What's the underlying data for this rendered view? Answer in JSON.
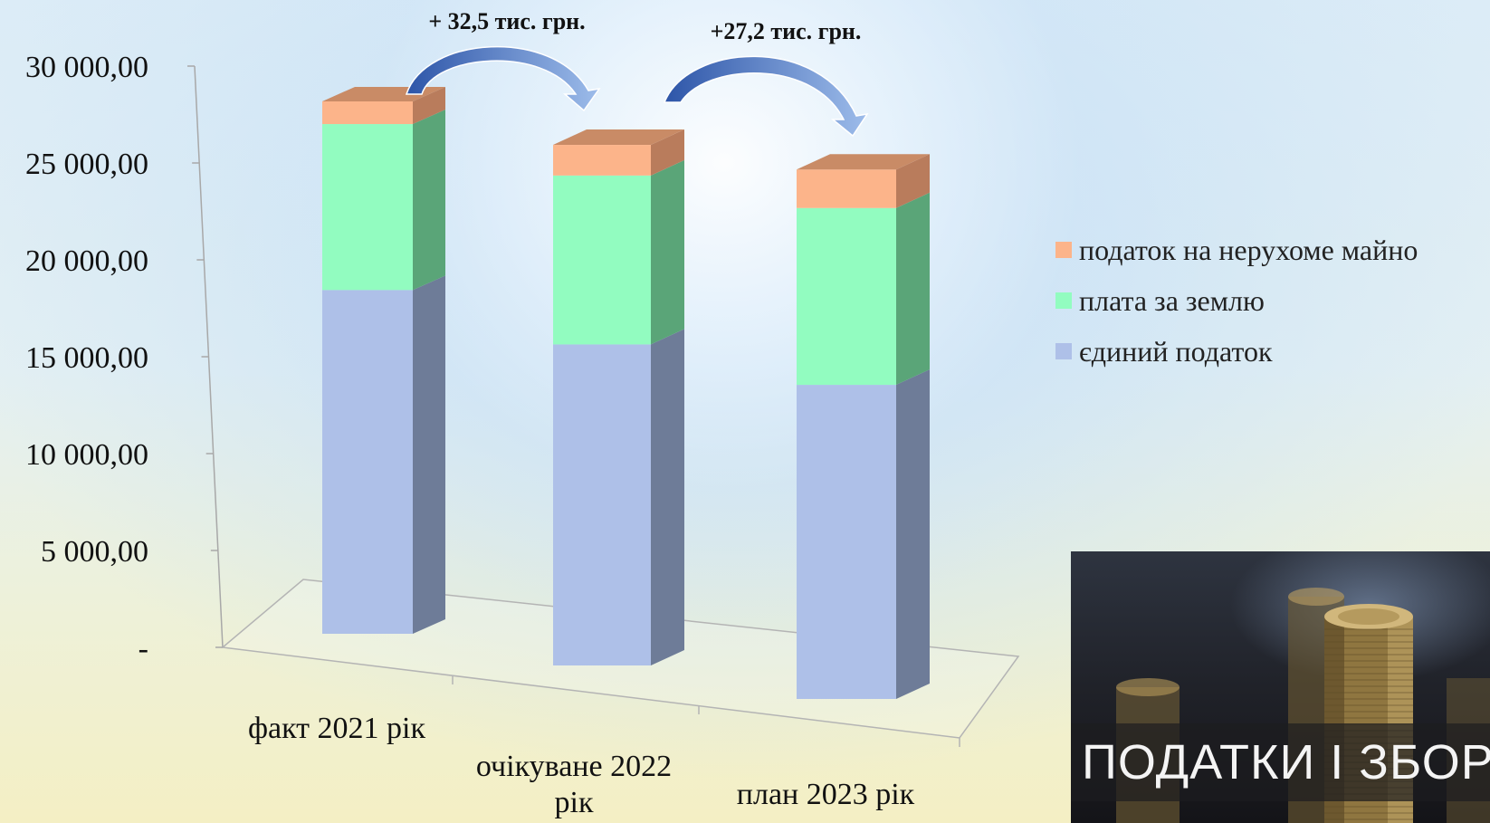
{
  "chart_data": {
    "type": "bar",
    "stacked": true,
    "three_d": true,
    "categories": [
      "факт 2021 рік",
      "очікуване 2022 рік",
      "план 2023 рік"
    ],
    "category_lines": [
      [
        "факт 2021 рік"
      ],
      [
        "очікуване 2022",
        "рік"
      ],
      [
        "план 2023 рік"
      ]
    ],
    "series": [
      {
        "name": "єдиний податок",
        "values": [
          17400,
          16250,
          15900
        ],
        "color": "#aec0e8",
        "side_color": "#6e7c98",
        "top_color": "#c8d6f2"
      },
      {
        "name": "плата за землю",
        "values": [
          8400,
          8550,
          8950
        ],
        "color": "#92fcc0",
        "side_color": "#5aa578",
        "top_color": "#b2ffd4"
      },
      {
        "name": "податок на нерухоме майно",
        "values": [
          1150,
          1550,
          1950
        ],
        "color": "#fcb48a",
        "side_color": "#b97c5c",
        "top_color": "#c98b66"
      }
    ],
    "y_ticks": [
      "-",
      "5 000,00",
      "10 000,00",
      "15 000,00",
      "20 000,00",
      "25 000,00",
      "30 000,00"
    ],
    "ylim": [
      0,
      30000
    ],
    "legend_position": "right",
    "annotations": [
      {
        "text": "+ 32,5 тис. грн.",
        "from": 0,
        "to": 1
      },
      {
        "text": "+27,2 тис. грн.",
        "from": 1,
        "to": 2
      }
    ],
    "annotation_color": "#4f77c6"
  },
  "photo": {
    "caption": "ПОДАТКИ І ЗБОРИ"
  }
}
